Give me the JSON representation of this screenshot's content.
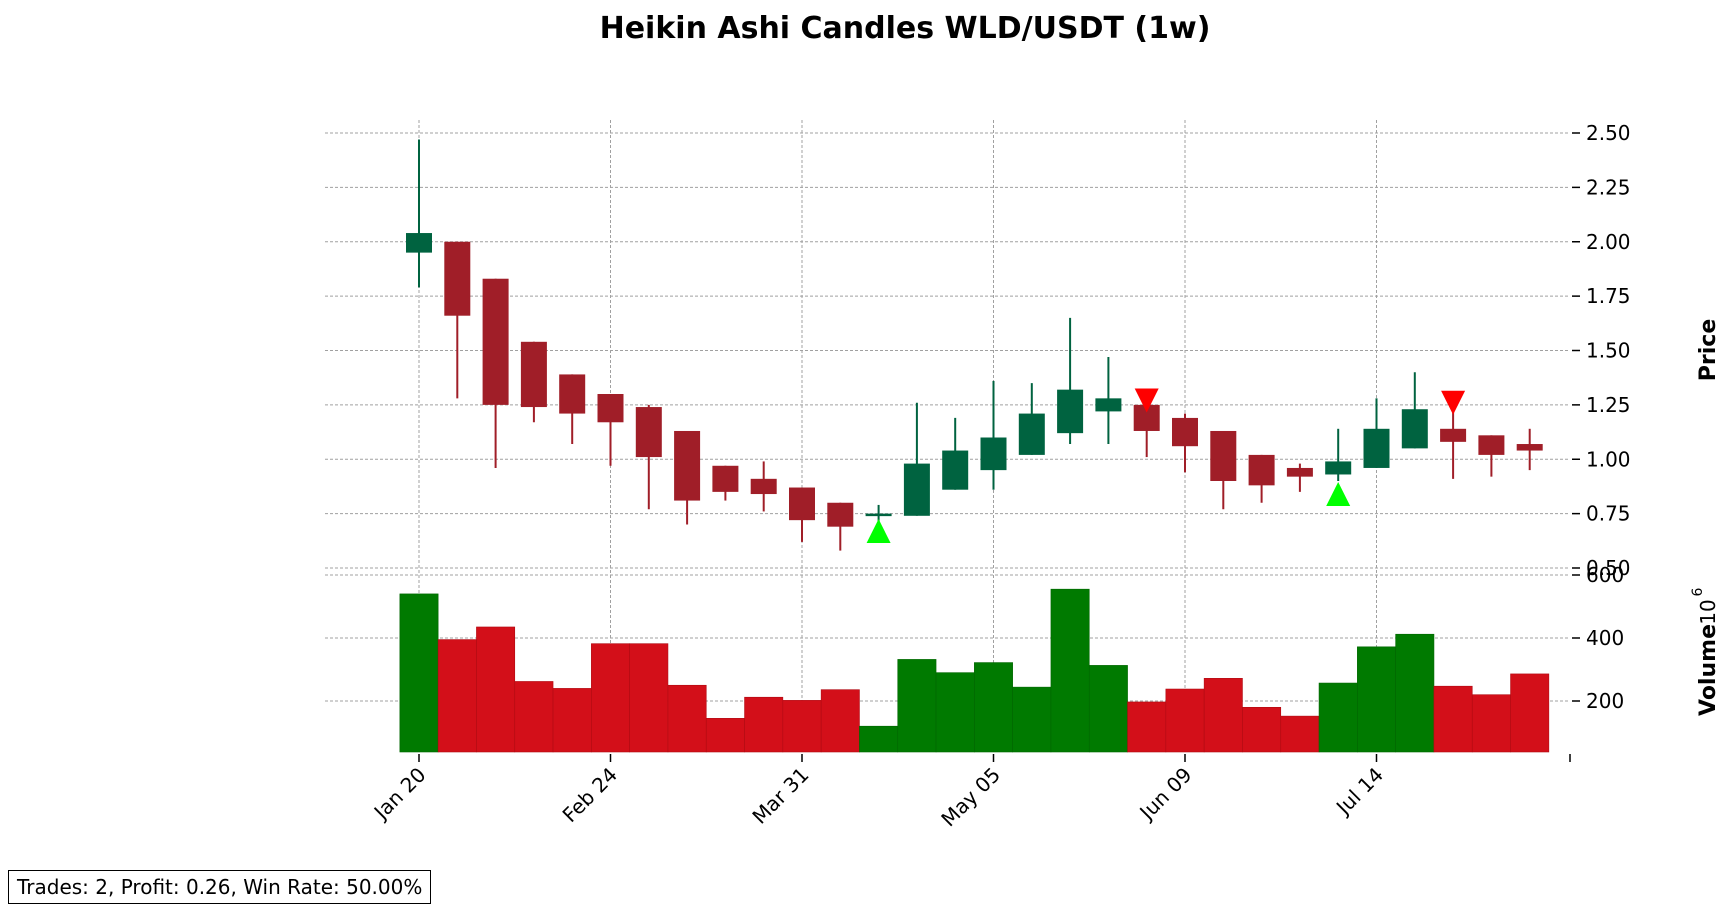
{
  "chart_data": {
    "type": "candlestick",
    "title": "Heikin Ashi Candles WLD/USDT (1w)",
    "ylabel": "Price",
    "volume_label": "Volume",
    "volume_exponent": "10",
    "volume_exponent_power": "6",
    "price_ylim": [
      0.5,
      2.55
    ],
    "price_ticks": [
      "0.50",
      "0.75",
      "1.00",
      "1.25",
      "1.50",
      "1.75",
      "2.00",
      "2.25",
      "2.50"
    ],
    "volume_ticks": [
      "200",
      "400",
      "600"
    ],
    "volume_ylim": [
      40,
      600
    ],
    "x_ticks": [
      {
        "label": "Jan 20",
        "index": 0
      },
      {
        "label": "Feb 24",
        "index": 5
      },
      {
        "label": "Mar 31",
        "index": 10
      },
      {
        "label": "May 05",
        "index": 15
      },
      {
        "label": "Jun 09",
        "index": 20
      },
      {
        "label": "Jul 14",
        "index": 25
      }
    ],
    "colors": {
      "up_candle": "#006340",
      "down_candle": "#a01e28",
      "up_volume": "#007a00",
      "down_volume": "#d30f19",
      "buy_marker": "#00ff00",
      "sell_marker": "#ff0000"
    },
    "candles": [
      {
        "open": 1.95,
        "close": 2.04,
        "high": 2.47,
        "low": 1.79,
        "volume": 540
      },
      {
        "open": 2.0,
        "close": 1.66,
        "high": 2.0,
        "low": 1.28,
        "volume": 395
      },
      {
        "open": 1.83,
        "close": 1.25,
        "high": 1.83,
        "low": 0.96,
        "volume": 435
      },
      {
        "open": 1.54,
        "close": 1.24,
        "high": 1.54,
        "low": 1.17,
        "volume": 262
      },
      {
        "open": 1.39,
        "close": 1.21,
        "high": 1.39,
        "low": 1.07,
        "volume": 240
      },
      {
        "open": 1.3,
        "close": 1.17,
        "high": 1.3,
        "low": 0.97,
        "volume": 382
      },
      {
        "open": 1.24,
        "close": 1.01,
        "high": 1.25,
        "low": 0.77,
        "volume": 382
      },
      {
        "open": 1.13,
        "close": 0.81,
        "high": 1.13,
        "low": 0.7,
        "volume": 250
      },
      {
        "open": 0.97,
        "close": 0.85,
        "high": 0.97,
        "low": 0.81,
        "volume": 145
      },
      {
        "open": 0.91,
        "close": 0.84,
        "high": 0.99,
        "low": 0.76,
        "volume": 212
      },
      {
        "open": 0.87,
        "close": 0.72,
        "high": 0.87,
        "low": 0.62,
        "volume": 202
      },
      {
        "open": 0.8,
        "close": 0.69,
        "high": 0.8,
        "low": 0.58,
        "volume": 236
      },
      {
        "open": 0.74,
        "close": 0.75,
        "high": 0.79,
        "low": 0.69,
        "volume": 120
      },
      {
        "open": 0.74,
        "close": 0.98,
        "high": 1.26,
        "low": 0.74,
        "volume": 332
      },
      {
        "open": 0.86,
        "close": 1.04,
        "high": 1.19,
        "low": 0.86,
        "volume": 290
      },
      {
        "open": 0.95,
        "close": 1.1,
        "high": 1.36,
        "low": 0.86,
        "volume": 322
      },
      {
        "open": 1.02,
        "close": 1.21,
        "high": 1.35,
        "low": 1.02,
        "volume": 244
      },
      {
        "open": 1.12,
        "close": 1.32,
        "high": 1.65,
        "low": 1.07,
        "volume": 555
      },
      {
        "open": 1.22,
        "close": 1.28,
        "high": 1.47,
        "low": 1.07,
        "volume": 313
      },
      {
        "open": 1.25,
        "close": 1.13,
        "high": 1.25,
        "low": 1.01,
        "volume": 197
      },
      {
        "open": 1.19,
        "close": 1.06,
        "high": 1.21,
        "low": 0.94,
        "volume": 238
      },
      {
        "open": 1.13,
        "close": 0.9,
        "high": 1.13,
        "low": 0.77,
        "volume": 272
      },
      {
        "open": 1.02,
        "close": 0.88,
        "high": 1.02,
        "low": 0.8,
        "volume": 180
      },
      {
        "open": 0.96,
        "close": 0.92,
        "high": 0.98,
        "low": 0.85,
        "volume": 152
      },
      {
        "open": 0.93,
        "close": 0.99,
        "high": 1.14,
        "low": 0.9,
        "volume": 257
      },
      {
        "open": 0.96,
        "close": 1.14,
        "high": 1.28,
        "low": 0.96,
        "volume": 372
      },
      {
        "open": 1.05,
        "close": 1.23,
        "high": 1.4,
        "low": 1.05,
        "volume": 412
      },
      {
        "open": 1.14,
        "close": 1.08,
        "high": 1.22,
        "low": 0.91,
        "volume": 247
      },
      {
        "open": 1.11,
        "close": 1.02,
        "high": 1.11,
        "low": 0.92,
        "volume": 220
      },
      {
        "open": 1.07,
        "close": 1.04,
        "high": 1.14,
        "low": 0.95,
        "volume": 286
      }
    ],
    "markers": [
      {
        "type": "buy",
        "index": 12,
        "price": 0.67
      },
      {
        "type": "sell",
        "index": 19,
        "price": 1.27
      },
      {
        "type": "buy",
        "index": 24,
        "price": 0.84
      },
      {
        "type": "sell",
        "index": 27,
        "price": 1.26
      }
    ]
  },
  "stats_box": {
    "text": "Trades: 2, Profit: 0.26, Win Rate: 50.00%"
  }
}
